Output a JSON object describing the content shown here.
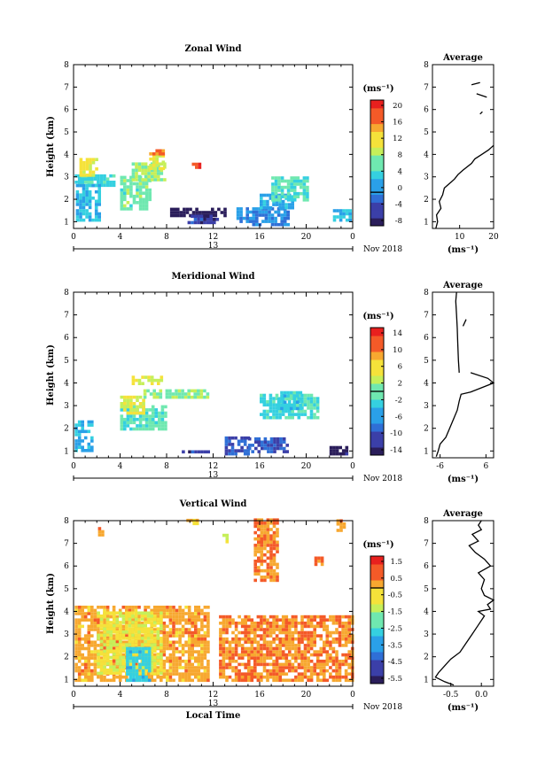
{
  "figure": {
    "panels": [
      {
        "title": "Zonal Wind",
        "ylabel": "Height (km)",
        "units": "(ms⁻¹)",
        "date_label": "Nov 2018",
        "day_label": "13",
        "xticks": [
          "0",
          "4",
          "8",
          "12",
          "16",
          "20",
          "0"
        ],
        "yticks": [
          "1",
          "2",
          "3",
          "4",
          "5",
          "6",
          "7",
          "8"
        ],
        "colorbar_ticks": [
          "20",
          "16",
          "12",
          "8",
          "4",
          "0",
          "-4",
          "-8"
        ],
        "avg_title": "Average",
        "avg_xticks": [
          "10",
          "20"
        ],
        "avg_xlabel": "(ms⁻¹)"
      },
      {
        "title": "Meridional Wind",
        "ylabel": "Height (km)",
        "units": "(ms⁻¹)",
        "date_label": "Nov 2018",
        "day_label": "13",
        "xticks": [
          "0",
          "4",
          "8",
          "12",
          "16",
          "20",
          "0"
        ],
        "yticks": [
          "1",
          "2",
          "3",
          "4",
          "5",
          "6",
          "7",
          "8"
        ],
        "colorbar_ticks": [
          "14",
          "10",
          "6",
          "2",
          "-2",
          "-6",
          "-10",
          "-14"
        ],
        "avg_title": "Average",
        "avg_xticks": [
          "-6",
          "6"
        ],
        "avg_xlabel": "(ms⁻¹)"
      },
      {
        "title": "Vertical Wind",
        "ylabel": "Height (km)",
        "units": "(ms⁻¹)",
        "date_label": "Nov 2018",
        "day_label": "13",
        "xticks": [
          "0",
          "4",
          "8",
          "12",
          "16",
          "20",
          "0"
        ],
        "yticks": [
          "1",
          "2",
          "3",
          "4",
          "5",
          "6",
          "7",
          "8"
        ],
        "colorbar_ticks": [
          "1.5",
          "0.5",
          "-0.5",
          "-1.5",
          "-2.5",
          "-3.5",
          "-4.5",
          "-5.5"
        ],
        "avg_title": "Average",
        "avg_xticks": [
          "-0.5",
          "0.0"
        ],
        "avg_xlabel": "(ms⁻¹)",
        "xlabel": "Local Time"
      }
    ]
  },
  "chart_data": [
    {
      "type": "heatmap",
      "title": "Zonal Wind",
      "xlabel": "",
      "ylabel": "Height (km)",
      "xlim": [
        0,
        24
      ],
      "ylim": [
        0.7,
        8.0
      ],
      "colorbar": {
        "min": -8,
        "max": 22,
        "units": "ms⁻¹",
        "colors": [
          "#2a1d5a",
          "#3b3fa8",
          "#2f6fd6",
          "#2aa0e8",
          "#35d0e0",
          "#6fe8b0",
          "#c6ef5a",
          "#f5e23a",
          "#f7a830",
          "#f45a28",
          "#e8201e"
        ]
      },
      "blobs": [
        {
          "t0": 0.1,
          "t1": 3.5,
          "h0": 2.55,
          "h1": 3.0,
          "v": 5
        },
        {
          "t0": 0.2,
          "t1": 2.2,
          "h0": 1.0,
          "h1": 2.6,
          "v": 3
        },
        {
          "t0": 0.5,
          "t1": 2.0,
          "h0": 3.0,
          "h1": 3.8,
          "v": 12
        },
        {
          "t0": 4.0,
          "t1": 6.5,
          "h0": 1.5,
          "h1": 3.0,
          "v": 7
        },
        {
          "t0": 5.0,
          "t1": 7.8,
          "h0": 2.8,
          "h1": 3.6,
          "v": 9
        },
        {
          "t0": 6.5,
          "t1": 7.8,
          "h0": 3.3,
          "h1": 3.9,
          "v": 11
        },
        {
          "t0": 6.5,
          "t1": 7.6,
          "h0": 3.95,
          "h1": 4.2,
          "v": 17
        },
        {
          "t0": 9.9,
          "t1": 10.8,
          "h0": 3.35,
          "h1": 3.55,
          "v": 19
        },
        {
          "t0": 8.3,
          "t1": 13.0,
          "h0": 1.2,
          "h1": 1.5,
          "v": -7
        },
        {
          "t0": 9.8,
          "t1": 12.3,
          "h0": 0.75,
          "h1": 1.3,
          "v": -4
        },
        {
          "t0": 14.0,
          "t1": 18.5,
          "h0": 0.8,
          "h1": 1.6,
          "v": 0
        },
        {
          "t0": 16.0,
          "t1": 18.8,
          "h0": 1.55,
          "h1": 2.2,
          "v": 2
        },
        {
          "t0": 17.0,
          "t1": 20.0,
          "h0": 1.9,
          "h1": 2.9,
          "v": 6
        },
        {
          "t0": 22.3,
          "t1": 23.9,
          "h0": 1.0,
          "h1": 1.5,
          "v": 3
        }
      ],
      "average": {
        "xlim": [
          2,
          20
        ],
        "segments": [
          [
            [
              3.0,
              0.7
            ],
            [
              3.5,
              1.0
            ],
            [
              3.2,
              1.3
            ],
            [
              4.5,
              1.6
            ],
            [
              4.0,
              1.9
            ],
            [
              5.0,
              2.2
            ],
            [
              5.5,
              2.5
            ],
            [
              7.0,
              2.7
            ],
            [
              8.5,
              2.9
            ],
            [
              9.5,
              3.1
            ],
            [
              11.0,
              3.3
            ],
            [
              13.5,
              3.6
            ],
            [
              14.5,
              3.8
            ],
            [
              16.5,
              4.0
            ],
            [
              18.5,
              4.2
            ],
            [
              20.0,
              4.4
            ]
          ],
          [
            [
              13.5,
              7.1
            ],
            [
              16.0,
              7.2
            ]
          ],
          [
            [
              15.0,
              6.7
            ],
            [
              18.0,
              6.55
            ]
          ],
          [
            [
              16.0,
              5.8
            ],
            [
              16.7,
              5.9
            ]
          ]
        ]
      }
    },
    {
      "type": "heatmap",
      "title": "Meridional Wind",
      "xlabel": "",
      "ylabel": "Height (km)",
      "xlim": [
        0,
        24
      ],
      "ylim": [
        0.7,
        8.0
      ],
      "colorbar": {
        "min": -16,
        "max": 16,
        "units": "ms⁻¹",
        "colors": [
          "#2a1d5a",
          "#3b3fa8",
          "#2f6fd6",
          "#2aa0e8",
          "#35d0e0",
          "#6fe8b0",
          "#c6ef5a",
          "#f5e23a",
          "#f7a830",
          "#f45a28",
          "#e8201e"
        ]
      },
      "blobs": [
        {
          "t0": 0.1,
          "t1": 1.7,
          "h0": 0.95,
          "h1": 2.3,
          "v": -5
        },
        {
          "t0": 4.0,
          "t1": 8.0,
          "h0": 1.9,
          "h1": 3.0,
          "v": -1
        },
        {
          "t0": 4.0,
          "t1": 6.0,
          "h0": 2.6,
          "h1": 3.4,
          "v": 4
        },
        {
          "t0": 6.0,
          "t1": 11.5,
          "h0": 3.3,
          "h1": 3.7,
          "v": 1
        },
        {
          "t0": 5.0,
          "t1": 7.5,
          "h0": 3.9,
          "h1": 4.2,
          "v": 4
        },
        {
          "t0": 13.0,
          "t1": 15.0,
          "h0": 0.8,
          "h1": 1.6,
          "v": -10
        },
        {
          "t0": 15.0,
          "t1": 18.5,
          "h0": 0.9,
          "h1": 1.6,
          "v": -10
        },
        {
          "t0": 9.3,
          "t1": 11.5,
          "h0": 0.75,
          "h1": 1.0,
          "v": -12
        },
        {
          "t0": 16.0,
          "t1": 21.0,
          "h0": 2.4,
          "h1": 3.4,
          "v": -2
        },
        {
          "t0": 17.5,
          "t1": 19.5,
          "h0": 2.8,
          "h1": 3.6,
          "v": -3
        },
        {
          "t0": 22.0,
          "t1": 23.5,
          "h0": 0.8,
          "h1": 1.1,
          "v": -14
        }
      ],
      "average": {
        "xlim": [
          -8,
          8
        ],
        "segments": [
          [
            [
              -7.0,
              0.75
            ],
            [
              -6.5,
              1.0
            ],
            [
              -6.0,
              1.3
            ],
            [
              -4.5,
              1.6
            ],
            [
              -3.5,
              2.0
            ],
            [
              -2.5,
              2.4
            ],
            [
              -1.5,
              2.8
            ],
            [
              -1.0,
              3.2
            ],
            [
              -0.5,
              3.5
            ],
            [
              2.0,
              3.6
            ],
            [
              5.0,
              3.8
            ],
            [
              8.0,
              4.0
            ],
            [
              6.5,
              4.2
            ],
            [
              2.0,
              4.45
            ]
          ],
          [
            [
              -1.0,
              4.45
            ],
            [
              -1.2,
              5.0
            ],
            [
              -1.4,
              5.8
            ],
            [
              -1.5,
              6.4
            ],
            [
              -1.7,
              7.0
            ],
            [
              -1.9,
              7.6
            ],
            [
              -1.7,
              8.0
            ]
          ],
          [
            [
              0.0,
              6.5
            ],
            [
              0.8,
              6.8
            ]
          ]
        ]
      }
    },
    {
      "type": "heatmap",
      "title": "Vertical Wind",
      "xlabel": "Local Time",
      "ylabel": "Height (km)",
      "xlim": [
        0,
        24
      ],
      "ylim": [
        0.7,
        8.0
      ],
      "colorbar": {
        "min": -6,
        "max": 2,
        "units": "ms⁻¹",
        "colors": [
          "#2a1d5a",
          "#3b3fa8",
          "#2f6fd6",
          "#2aa0e8",
          "#35d0e0",
          "#6fe8b0",
          "#c6ef5a",
          "#f5e23a",
          "#f7a830",
          "#f45a28",
          "#e8201e"
        ]
      },
      "blobs": [
        {
          "t0": 0.1,
          "t1": 11.5,
          "h0": 0.75,
          "h1": 4.2,
          "v": 0.2
        },
        {
          "t0": 2.0,
          "t1": 7.5,
          "h0": 1.2,
          "h1": 4.0,
          "v": -0.8
        },
        {
          "t0": 4.5,
          "t1": 6.5,
          "h0": 0.75,
          "h1": 2.4,
          "v": -2.8
        },
        {
          "t0": 12.5,
          "t1": 23.9,
          "h0": 0.75,
          "h1": 3.7,
          "v": 0.5
        },
        {
          "t0": 15.5,
          "t1": 17.5,
          "h0": 5.3,
          "h1": 8.0,
          "v": 0.5
        },
        {
          "t0": 9.7,
          "t1": 11.0,
          "h0": 7.8,
          "h1": 8.0,
          "v": -0.2
        },
        {
          "t0": 2.1,
          "t1": 2.5,
          "h0": 7.3,
          "h1": 7.7,
          "v": 0.6
        },
        {
          "t0": 12.8,
          "t1": 13.3,
          "h0": 7.0,
          "h1": 7.3,
          "v": -1.1
        },
        {
          "t0": 20.7,
          "t1": 21.3,
          "h0": 6.0,
          "h1": 6.4,
          "v": 0.5
        },
        {
          "t0": 22.6,
          "t1": 23.2,
          "h0": 7.5,
          "h1": 8.0,
          "v": 0.4
        }
      ],
      "average": {
        "xlim": [
          -0.8,
          0.2
        ],
        "segments": [
          [
            [
              -0.45,
              0.75
            ],
            [
              -0.6,
              0.9
            ],
            [
              -0.75,
              1.1
            ],
            [
              -0.7,
              1.3
            ],
            [
              -0.6,
              1.6
            ],
            [
              -0.5,
              1.9
            ],
            [
              -0.35,
              2.2
            ],
            [
              -0.25,
              2.6
            ],
            [
              -0.15,
              3.0
            ],
            [
              -0.05,
              3.4
            ],
            [
              0.05,
              3.8
            ],
            [
              -0.05,
              4.0
            ],
            [
              0.15,
              4.1
            ],
            [
              0.1,
              4.3
            ],
            [
              0.2,
              4.5
            ],
            [
              0.05,
              4.7
            ],
            [
              0.0,
              5.0
            ],
            [
              0.05,
              5.4
            ],
            [
              -0.05,
              5.7
            ],
            [
              0.15,
              6.0
            ],
            [
              0.05,
              6.3
            ],
            [
              -0.1,
              6.6
            ],
            [
              -0.2,
              6.9
            ],
            [
              -0.05,
              7.1
            ],
            [
              -0.15,
              7.4
            ],
            [
              0.0,
              7.6
            ],
            [
              -0.05,
              7.8
            ],
            [
              0.0,
              8.0
            ]
          ]
        ]
      }
    }
  ]
}
